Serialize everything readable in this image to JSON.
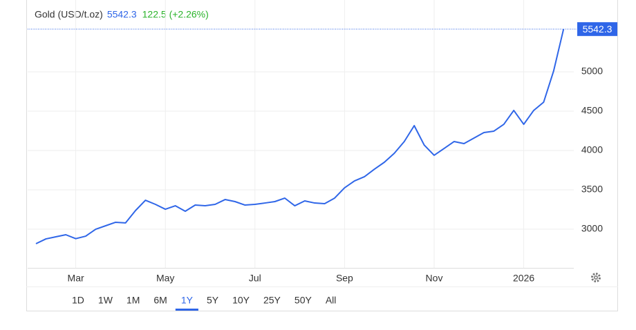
{
  "chart_data": {
    "type": "line",
    "title": "Gold (USD/t.oz)",
    "change": "122.5 (+2.26%)",
    "categories": [
      null,
      null,
      null,
      null,
      "Mar",
      null,
      null,
      null,
      null,
      null,
      null,
      null,
      null,
      "May",
      null,
      null,
      null,
      null,
      null,
      null,
      null,
      null,
      "Jul",
      null,
      null,
      null,
      null,
      null,
      null,
      null,
      null,
      "Sep",
      null,
      null,
      null,
      null,
      null,
      null,
      null,
      null,
      "Nov",
      null,
      null,
      null,
      null,
      null,
      null,
      null,
      null,
      "2026",
      null,
      null,
      null,
      null
    ],
    "series": [
      {
        "name": "Gold",
        "color": "#2f66e8",
        "values": [
          2816,
          2877,
          2904,
          2930,
          2880,
          2912,
          3000,
          3044,
          3088,
          3080,
          3237,
          3368,
          3316,
          3254,
          3298,
          3228,
          3307,
          3298,
          3316,
          3377,
          3351,
          3307,
          3316,
          3333,
          3351,
          3395,
          3298,
          3360,
          3333,
          3325,
          3395,
          3526,
          3614,
          3667,
          3763,
          3851,
          3965,
          4114,
          4316,
          4070,
          3939,
          4026,
          4114,
          4088,
          4158,
          4228,
          4246,
          4333,
          4509,
          4333,
          4509,
          4614,
          5009,
          5542.3
        ]
      }
    ],
    "ylim": [
      2509,
      5842
    ],
    "yticks": [
      3000,
      3500,
      4000,
      4500,
      5000
    ],
    "grid": true,
    "ranges": [
      "1D",
      "1W",
      "1M",
      "6M",
      "1Y",
      "5Y",
      "10Y",
      "25Y",
      "50Y",
      "All"
    ],
    "active_range": 4
  }
}
